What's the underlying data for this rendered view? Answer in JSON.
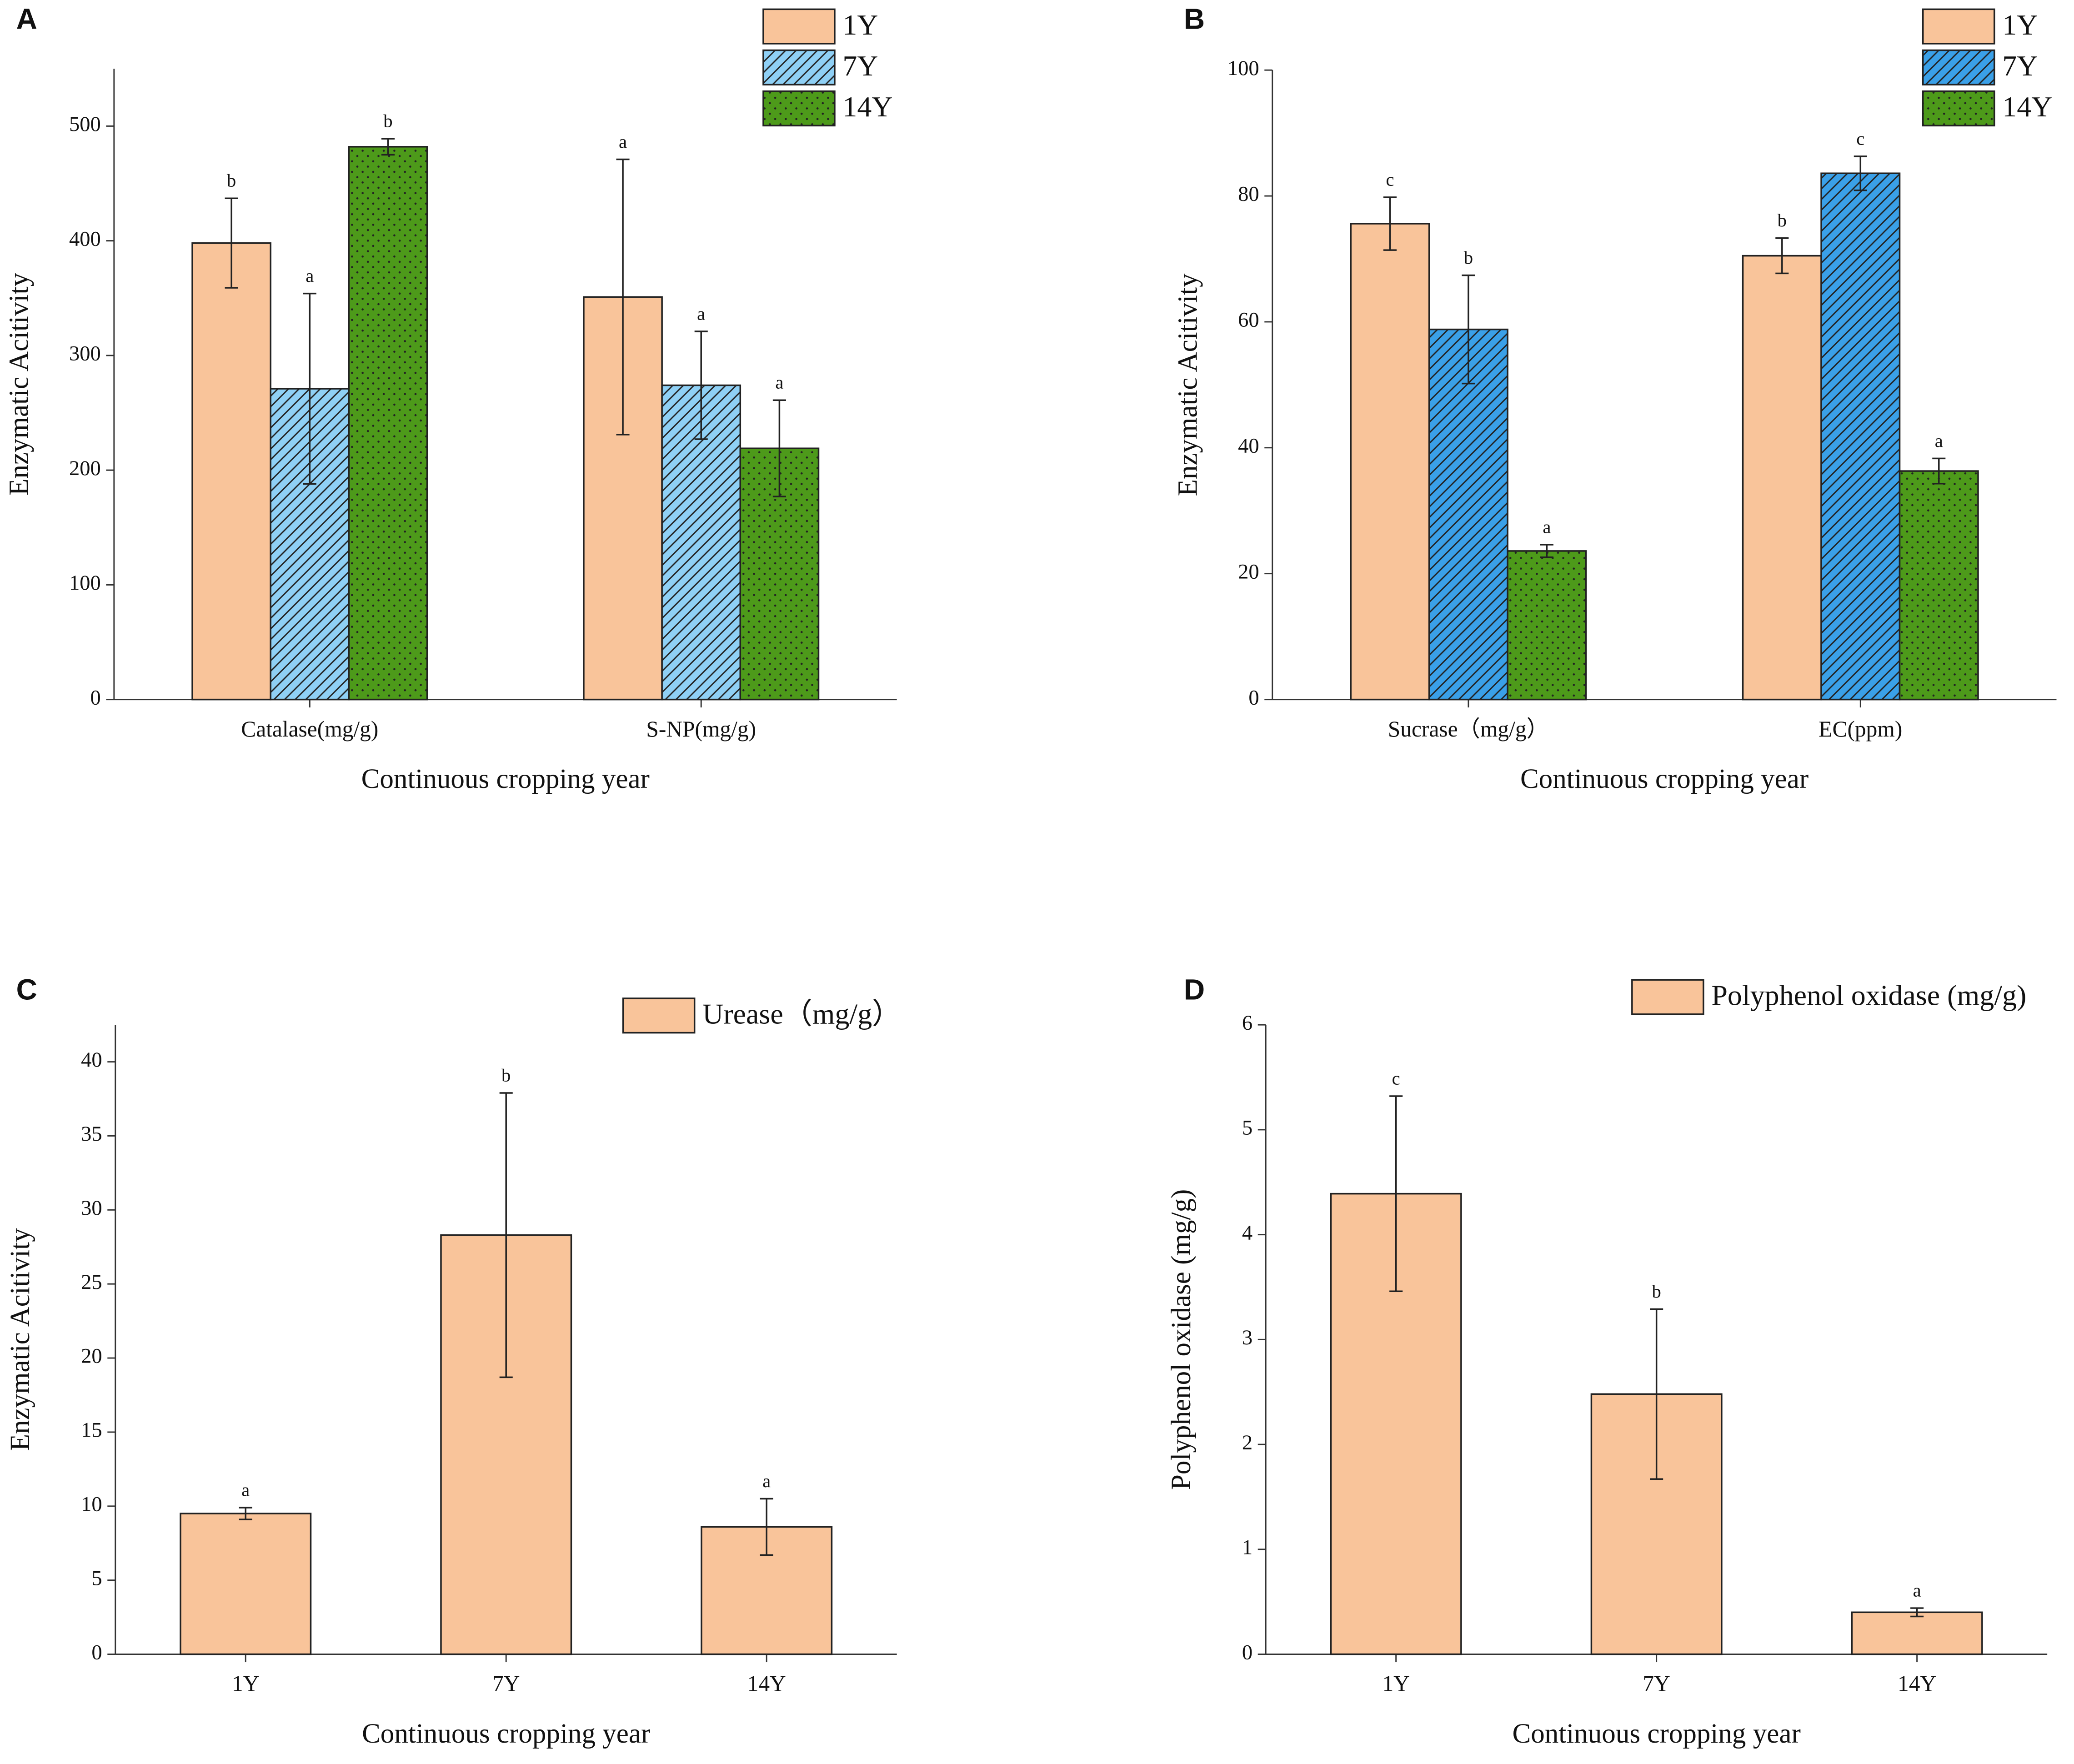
{
  "chart_data": [
    {
      "type": "bar",
      "panel": "A",
      "ylabel": "Enzymatic Acitivity",
      "xlabel": "Continuous cropping year",
      "categories": [
        "Catalase(mg/g)",
        "S-NP(mg/g)"
      ],
      "series": [
        {
          "name": "1Y",
          "color": "#f9c49a",
          "hatch": "none",
          "values": [
            398,
            351
          ],
          "errors": [
            39,
            120
          ],
          "labels": [
            "b",
            "a"
          ]
        },
        {
          "name": "7Y",
          "color": "#8fd0f5",
          "hatch": "diagonal",
          "values": [
            271,
            274
          ],
          "errors": [
            83,
            47
          ],
          "labels": [
            "a",
            "a"
          ]
        },
        {
          "name": "14Y",
          "color": "#4d9a1a",
          "hatch": "dots",
          "values": [
            482,
            219
          ],
          "errors": [
            7,
            42
          ],
          "labels": [
            "b",
            "a"
          ]
        }
      ],
      "ylim": [
        0,
        550
      ],
      "yticks": [
        0,
        100,
        200,
        300,
        400,
        500
      ],
      "legend": "upper right"
    },
    {
      "type": "bar",
      "panel": "B",
      "ylabel": "Enzymatic Acitivity",
      "xlabel": "Continuous cropping year",
      "categories": [
        "Sucrase（mg/g）",
        "EC(ppm)"
      ],
      "series": [
        {
          "name": "1Y",
          "color": "#f9c49a",
          "hatch": "none",
          "values": [
            75.6,
            70.5
          ],
          "errors": [
            4.2,
            2.8
          ],
          "labels": [
            "c",
            "b"
          ]
        },
        {
          "name": "7Y",
          "color": "#3aa0e8",
          "hatch": "diagonal",
          "values": [
            58.8,
            83.6
          ],
          "errors": [
            8.6,
            2.7
          ],
          "labels": [
            "b",
            "c"
          ]
        },
        {
          "name": "14Y",
          "color": "#4d9a1a",
          "hatch": "dots",
          "values": [
            23.6,
            36.3
          ],
          "errors": [
            1,
            2
          ],
          "labels": [
            "a",
            "a"
          ]
        }
      ],
      "ylim": [
        0,
        100
      ],
      "yticks": [
        0,
        20,
        40,
        60,
        80,
        100
      ],
      "legend": "upper right"
    },
    {
      "type": "bar",
      "panel": "C",
      "ylabel": "Enzymatic Acitivity",
      "xlabel": "Continuous cropping year",
      "categories": [
        "1Y",
        "7Y",
        "14Y"
      ],
      "series": [
        {
          "name": "Urease（mg/g）",
          "color": "#f9c49a",
          "hatch": "none",
          "values": [
            9.5,
            28.3,
            8.6
          ],
          "errors": [
            0.4,
            9.6,
            1.9
          ],
          "labels": [
            "a",
            "b",
            "a"
          ]
        }
      ],
      "ylim": [
        0,
        42.5
      ],
      "yticks": [
        0,
        5,
        10,
        15,
        20,
        25,
        30,
        35,
        40
      ],
      "legend": "upper right"
    },
    {
      "type": "bar",
      "panel": "D",
      "ylabel": "Polyphenol oxidase (mg/g)",
      "xlabel": "Continuous cropping year",
      "categories": [
        "1Y",
        "7Y",
        "14Y"
      ],
      "series": [
        {
          "name": "Polyphenol oxidase (mg/g)",
          "color": "#f9c49a",
          "hatch": "none",
          "values": [
            4.39,
            2.48,
            0.4
          ],
          "errors": [
            0.93,
            0.81,
            0.04
          ],
          "labels": [
            "c",
            "b",
            "a"
          ]
        }
      ],
      "ylim": [
        0,
        6
      ],
      "yticks": [
        0,
        1,
        2,
        3,
        4,
        5,
        6
      ],
      "legend": "upper right"
    }
  ]
}
